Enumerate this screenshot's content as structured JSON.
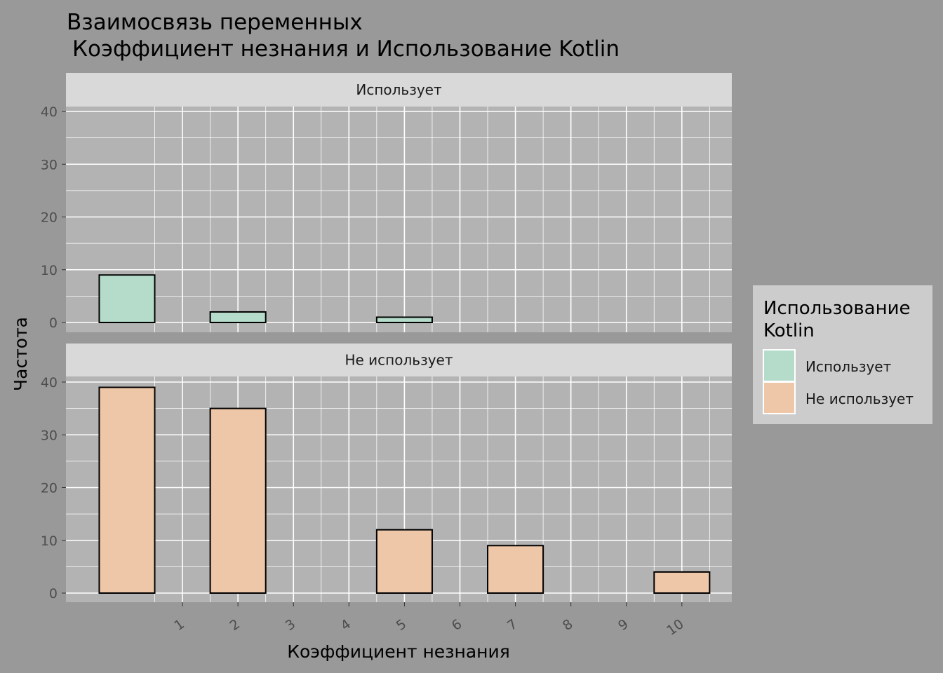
{
  "chart_data": {
    "type": "bar",
    "title_line1": "Взаимосвязь переменных",
    "title_line2": "Коэффициент незнания и Использование Kotlin",
    "xlabel": "Коэффициент незнания",
    "ylabel": "Частота",
    "x_ticks": [
      1,
      2,
      3,
      4,
      5,
      6,
      7,
      8,
      9,
      10
    ],
    "xlim": [
      -1.1,
      10.9
    ],
    "ylim": [
      0,
      40
    ],
    "y_ticks": [
      0,
      10,
      20,
      30,
      40
    ],
    "bin_width": 1,
    "grid": true,
    "legend": {
      "title_line1": "Использование",
      "title_line2": "Kotlin",
      "position": "right"
    },
    "panels": [
      {
        "label": "Использует",
        "color": "#b5dccb",
        "bins": [
          {
            "x": 0,
            "value": 9
          },
          {
            "x": 1,
            "value": 0
          },
          {
            "x": 2,
            "value": 2
          },
          {
            "x": 3,
            "value": 0
          },
          {
            "x": 4,
            "value": 0
          },
          {
            "x": 5,
            "value": 1
          },
          {
            "x": 6,
            "value": 0
          },
          {
            "x": 7,
            "value": 0
          },
          {
            "x": 8,
            "value": 0
          },
          {
            "x": 9,
            "value": 0
          },
          {
            "x": 10,
            "value": 0
          }
        ]
      },
      {
        "label": "Не использует",
        "color": "#eec7a8",
        "bins": [
          {
            "x": 0,
            "value": 39
          },
          {
            "x": 1,
            "value": 0
          },
          {
            "x": 2,
            "value": 35
          },
          {
            "x": 3,
            "value": 0
          },
          {
            "x": 4,
            "value": 0
          },
          {
            "x": 5,
            "value": 12
          },
          {
            "x": 6,
            "value": 0
          },
          {
            "x": 7,
            "value": 9
          },
          {
            "x": 8,
            "value": 0
          },
          {
            "x": 9,
            "value": 0
          },
          {
            "x": 10,
            "value": 4
          }
        ]
      }
    ]
  }
}
